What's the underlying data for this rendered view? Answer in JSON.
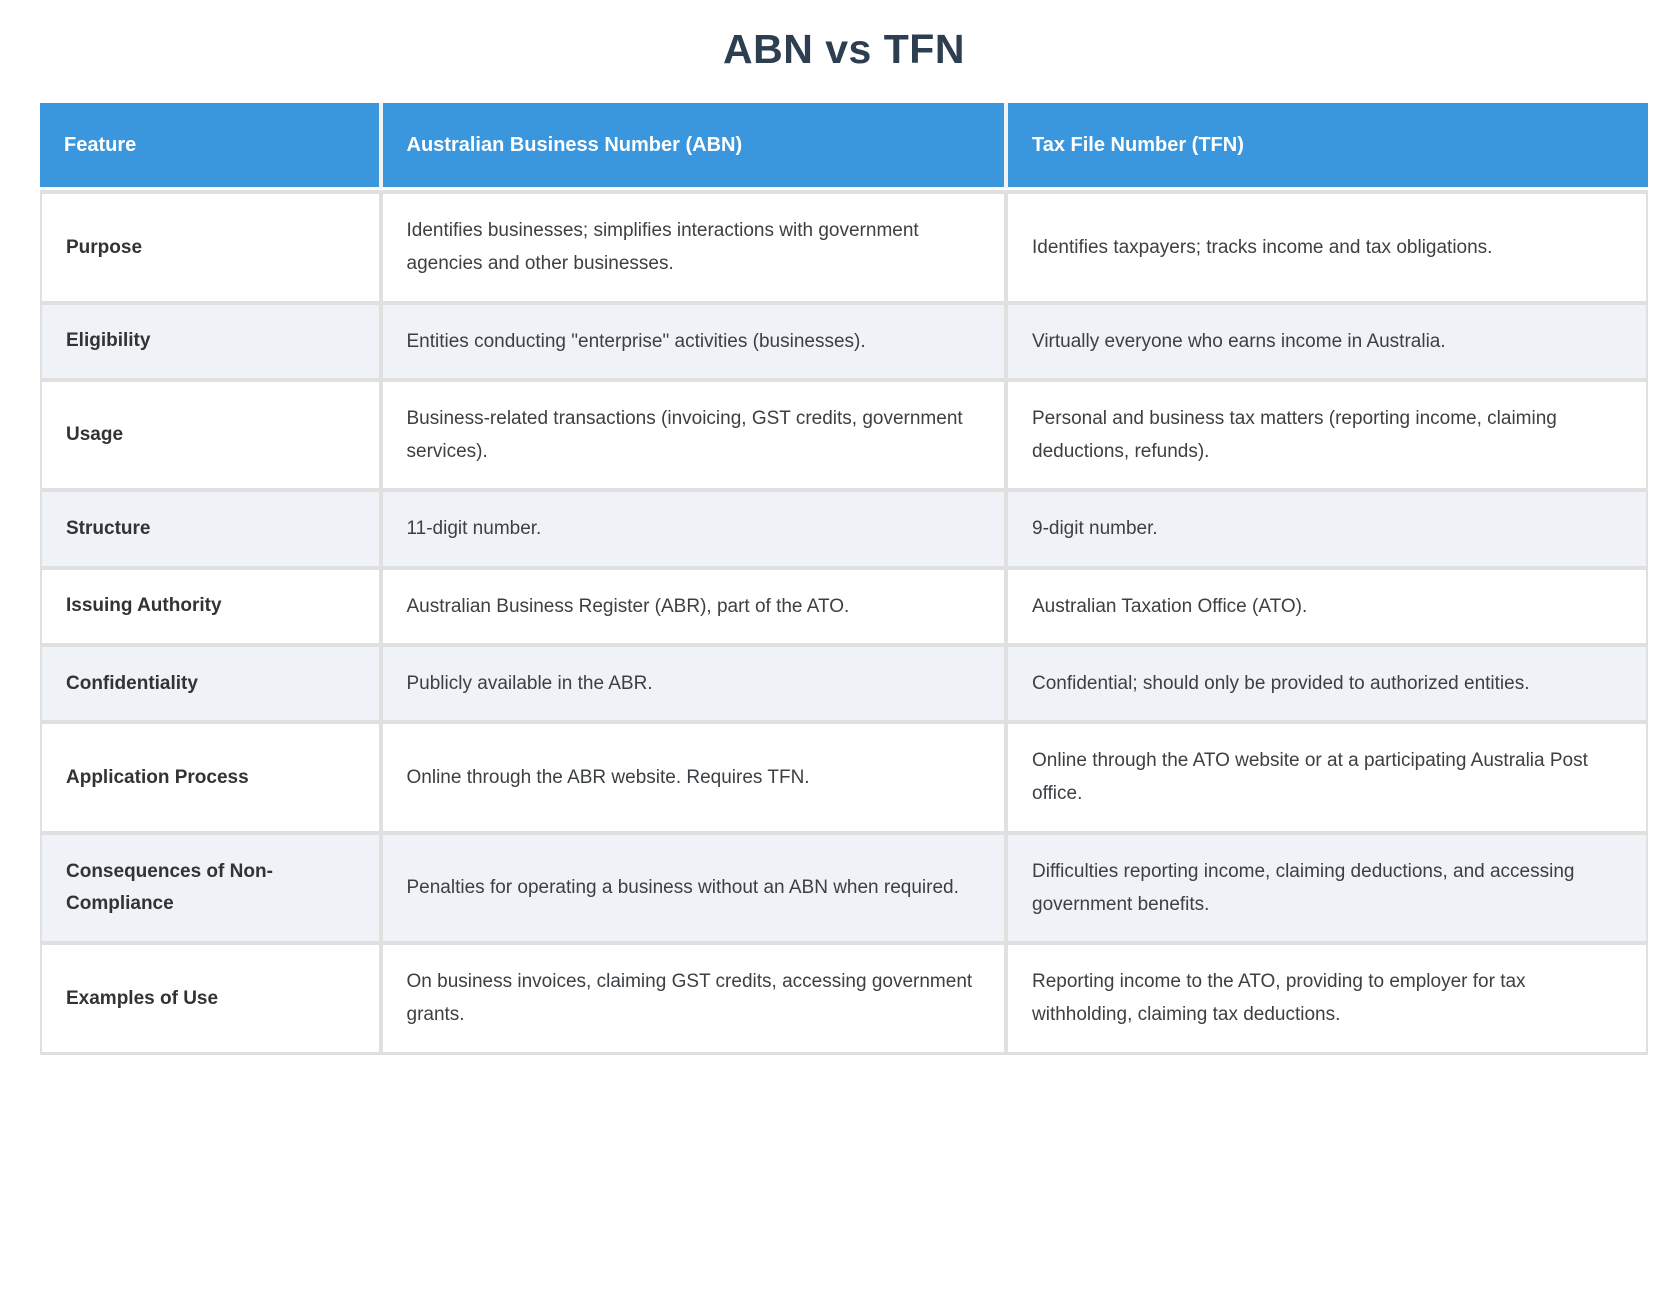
{
  "page": {
    "title": "ABN vs TFN"
  },
  "table": {
    "columns": [
      "Feature",
      "Australian Business Number (ABN)",
      "Tax File Number (TFN)"
    ],
    "rows": [
      {
        "feature": "Purpose",
        "abn": "Identifies businesses; simplifies interactions with government agencies and other businesses.",
        "tfn": "Identifies taxpayers; tracks income and tax obligations."
      },
      {
        "feature": "Eligibility",
        "abn": "Entities conducting \"enterprise\" activities (businesses).",
        "tfn": "Virtually everyone who earns income in Australia."
      },
      {
        "feature": "Usage",
        "abn": "Business-related transactions (invoicing, GST credits, government services).",
        "tfn": "Personal and business tax matters (reporting income, claiming deductions, refunds)."
      },
      {
        "feature": "Structure",
        "abn": "11-digit number.",
        "tfn": "9-digit number."
      },
      {
        "feature": "Issuing Authority",
        "abn": "Australian Business Register (ABR), part of the ATO.",
        "tfn": "Australian Taxation Office (ATO)."
      },
      {
        "feature": "Confidentiality",
        "abn": "Publicly available in the ABR.",
        "tfn": "Confidential; should only be provided to authorized entities."
      },
      {
        "feature": "Application Process",
        "abn": "Online through the ABR website. Requires TFN.",
        "tfn": "Online through the ATO website or at a participating Australia Post office."
      },
      {
        "feature": "Consequences of Non-Compliance",
        "abn": "Penalties for operating a business without an ABN when required.",
        "tfn": "Difficulties reporting income, claiming deductions, and accessing government benefits."
      },
      {
        "feature": "Examples of Use",
        "abn": "On business invoices, claiming GST credits, accessing government grants.",
        "tfn": "Reporting income to the ATO, providing to employer for tax withholding, claiming tax deductions."
      }
    ]
  },
  "colors": {
    "header_bg": "#3b97dd",
    "header_text": "#ffffff",
    "row_bg": "#ffffff",
    "row_alt_bg": "#eff3f8",
    "border": "#e0e0e0",
    "title_text": "#2c3e50",
    "body_text": "#3c4043"
  }
}
